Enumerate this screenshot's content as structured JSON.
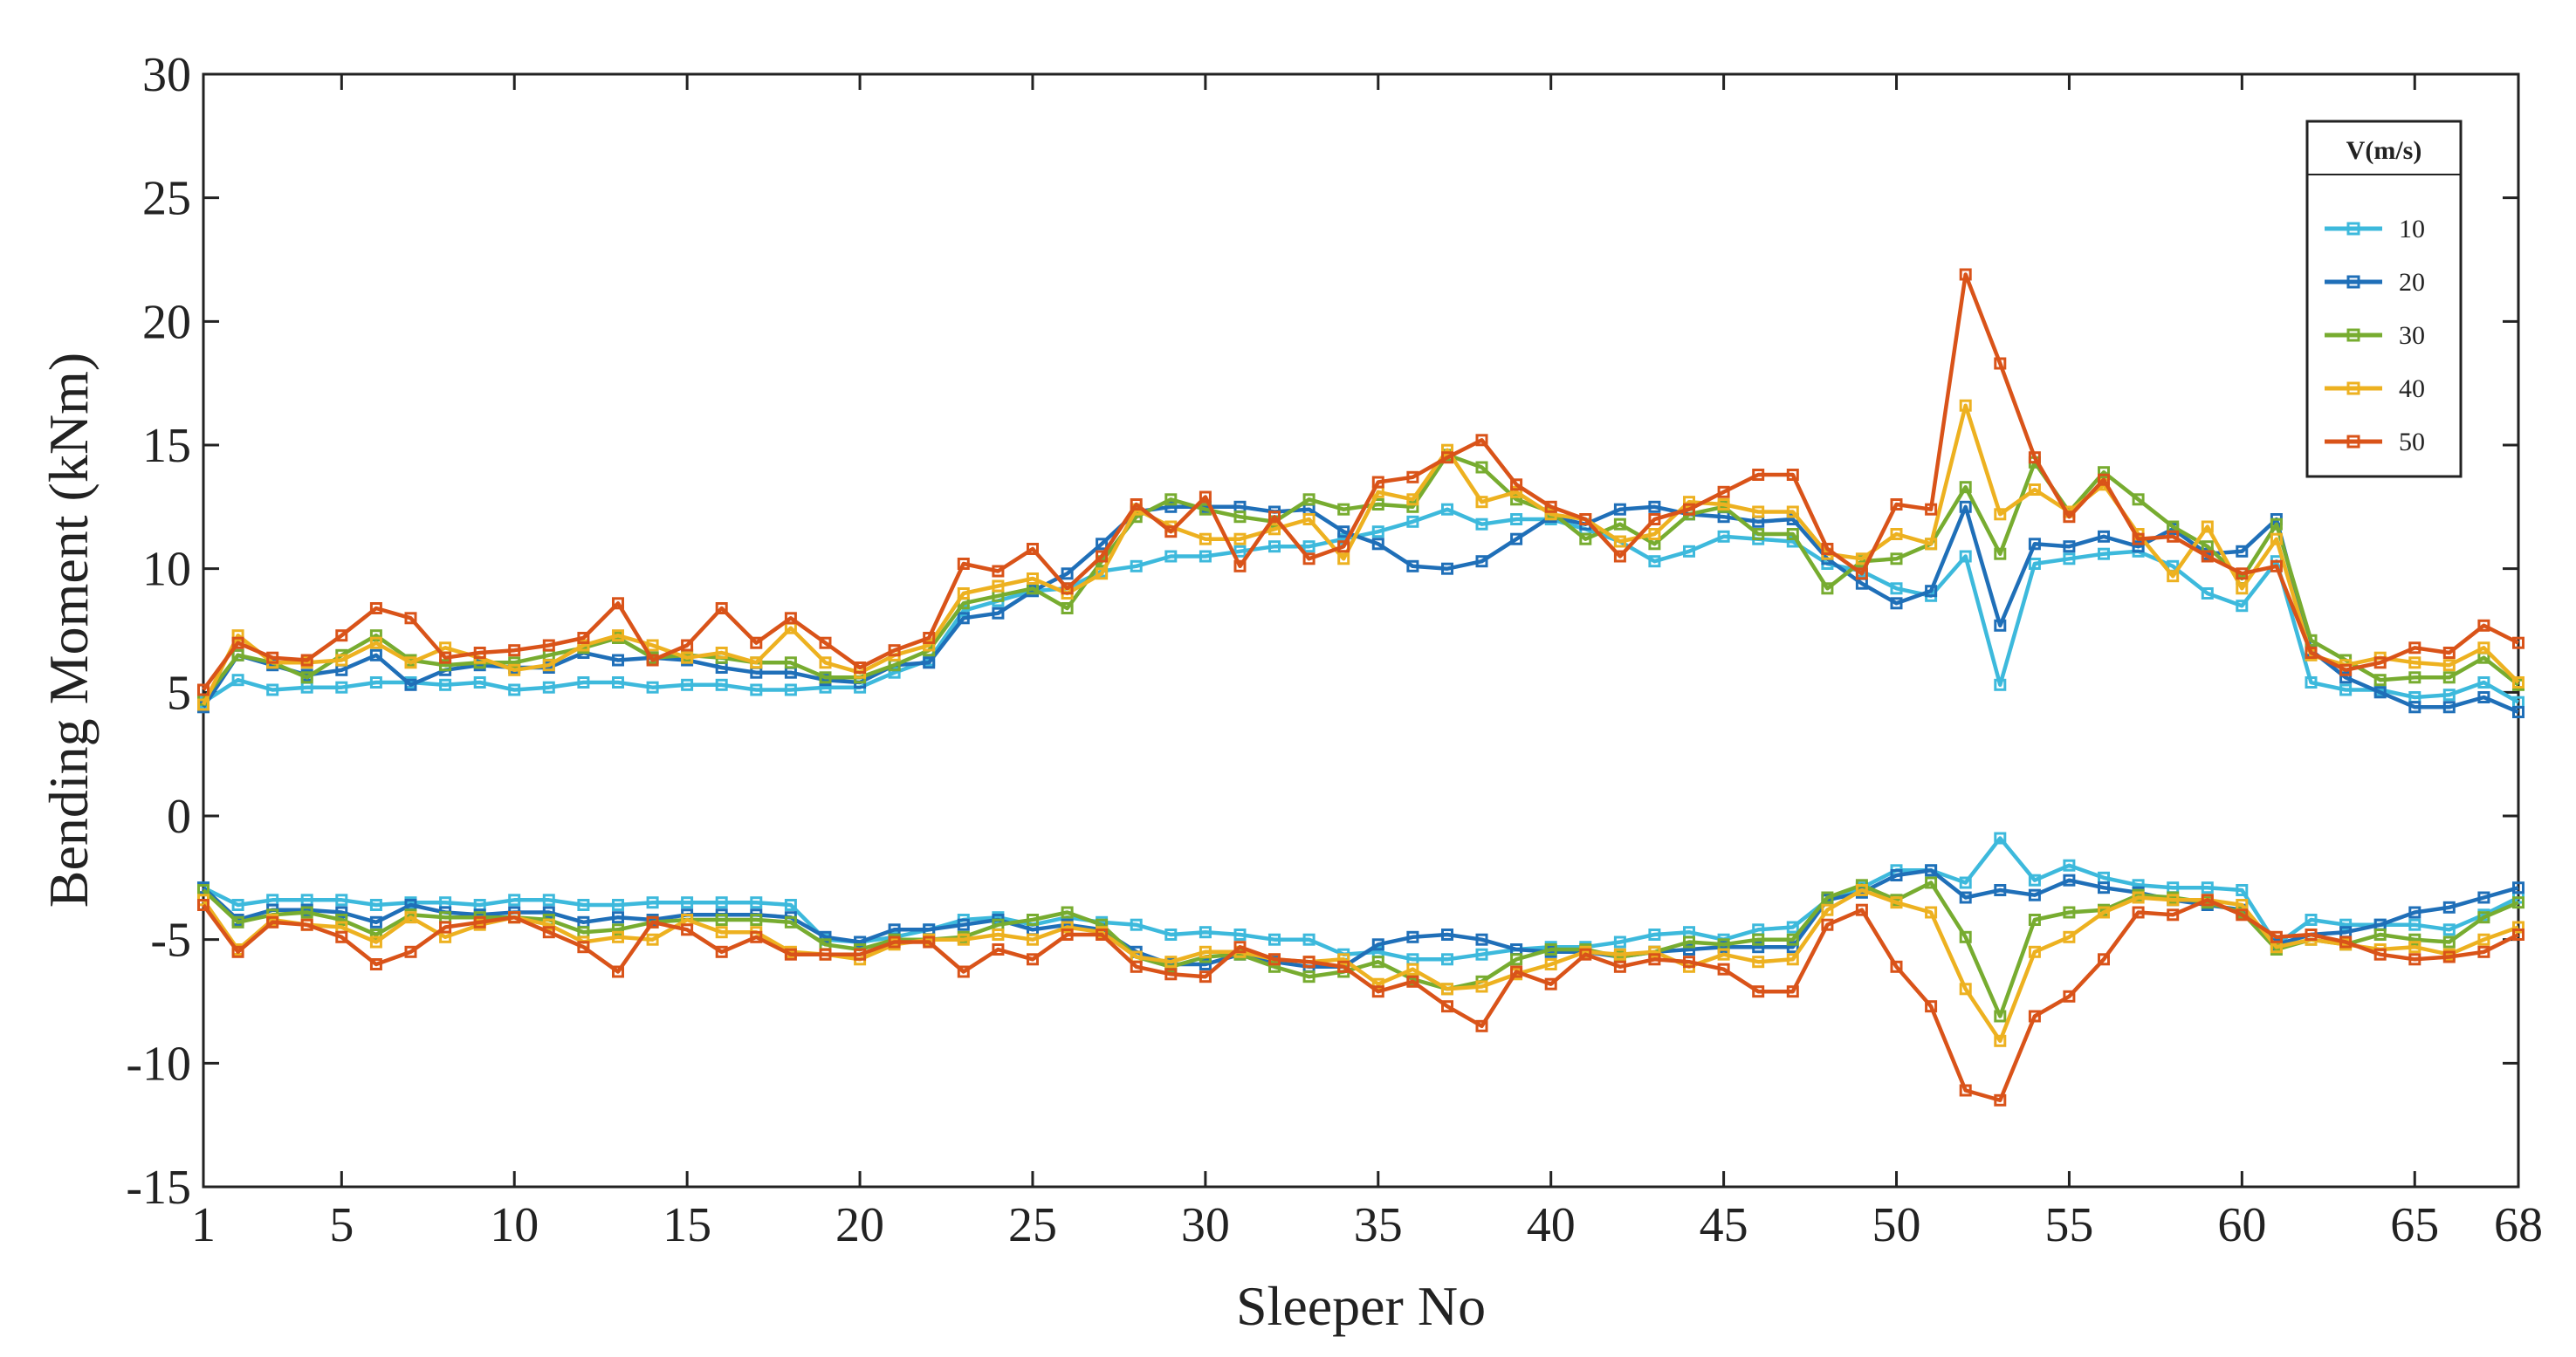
{
  "colors": {
    "axis": "#222222",
    "plot_bg": "#ffffff",
    "legend_border": "#222222"
  },
  "chart_data": {
    "type": "line",
    "title": "",
    "xlabel": "Sleeper No",
    "ylabel": "Bending Moment (kNm)",
    "xlim": [
      1,
      68
    ],
    "ylim": [
      -15,
      30
    ],
    "xticks": [
      1,
      5,
      10,
      15,
      20,
      25,
      30,
      35,
      40,
      45,
      50,
      55,
      60,
      65,
      68
    ],
    "yticks": [
      -15,
      -10,
      -5,
      0,
      5,
      10,
      15,
      20,
      25,
      30
    ],
    "grid": false,
    "marker": "square",
    "legend": {
      "title": "V(m/s)",
      "position": "top-right"
    },
    "x": [
      1,
      2,
      3,
      4,
      5,
      6,
      7,
      8,
      9,
      10,
      11,
      12,
      13,
      14,
      15,
      16,
      17,
      18,
      19,
      20,
      21,
      22,
      23,
      24,
      25,
      26,
      27,
      28,
      29,
      30,
      31,
      32,
      33,
      34,
      35,
      36,
      37,
      38,
      39,
      40,
      41,
      42,
      43,
      44,
      45,
      46,
      47,
      48,
      49,
      50,
      51,
      52,
      53,
      54,
      55,
      56,
      57,
      58,
      59,
      60,
      61,
      62,
      63,
      64,
      65,
      66,
      67,
      68
    ],
    "series": [
      {
        "name": "10",
        "color": "#3db9dc",
        "values_positive": [
          4.6,
          5.5,
          5.1,
          5.2,
          5.2,
          5.4,
          5.4,
          5.3,
          5.4,
          5.1,
          5.2,
          5.4,
          5.4,
          5.2,
          5.3,
          5.3,
          5.1,
          5.1,
          5.2,
          5.2,
          5.8,
          6.3,
          8.3,
          8.7,
          9.1,
          9.2,
          9.9,
          10.1,
          10.5,
          10.5,
          10.7,
          10.9,
          10.9,
          11.2,
          11.5,
          11.9,
          12.4,
          11.8,
          12.0,
          12.0,
          11.6,
          11.1,
          10.3,
          10.7,
          11.3,
          11.2,
          11.1,
          10.2,
          9.9,
          9.2,
          8.9,
          10.5,
          5.3,
          10.2,
          10.4,
          10.6,
          10.7,
          10.1,
          9.0,
          8.5,
          10.3,
          5.4,
          5.1,
          5.1,
          4.8,
          4.9,
          5.4,
          4.6
        ],
        "values_negative": [
          -2.9,
          -3.6,
          -3.4,
          -3.4,
          -3.4,
          -3.6,
          -3.5,
          -3.5,
          -3.6,
          -3.4,
          -3.4,
          -3.6,
          -3.6,
          -3.5,
          -3.5,
          -3.5,
          -3.5,
          -3.6,
          -5.0,
          -5.1,
          -4.9,
          -4.6,
          -4.2,
          -4.1,
          -4.4,
          -4.1,
          -4.3,
          -4.4,
          -4.8,
          -4.7,
          -4.8,
          -5.0,
          -5.0,
          -5.6,
          -5.5,
          -5.8,
          -5.8,
          -5.6,
          -5.4,
          -5.3,
          -5.3,
          -5.1,
          -4.8,
          -4.7,
          -5.0,
          -4.6,
          -4.5,
          -3.4,
          -2.9,
          -2.2,
          -2.2,
          -2.7,
          -0.9,
          -2.6,
          -2.0,
          -2.5,
          -2.8,
          -2.9,
          -2.9,
          -3.0,
          -5.2,
          -4.2,
          -4.4,
          -4.4,
          -4.4,
          -4.6,
          -4.0,
          -3.3
        ]
      },
      {
        "name": "20",
        "color": "#1f6fb8",
        "values_positive": [
          4.4,
          6.5,
          6.1,
          5.7,
          5.9,
          6.5,
          5.3,
          5.9,
          6.1,
          6.0,
          6.0,
          6.6,
          6.3,
          6.4,
          6.3,
          6.0,
          5.8,
          5.8,
          5.5,
          5.4,
          6.1,
          6.2,
          8.0,
          8.2,
          9.1,
          9.8,
          11.0,
          12.3,
          12.5,
          12.5,
          12.5,
          12.3,
          12.4,
          11.5,
          11.0,
          10.1,
          10.0,
          10.3,
          11.2,
          12.1,
          11.8,
          12.4,
          12.5,
          12.2,
          12.1,
          11.9,
          12.0,
          10.4,
          9.4,
          8.6,
          9.1,
          12.5,
          7.7,
          11.0,
          10.9,
          11.3,
          10.9,
          11.6,
          10.6,
          10.7,
          12.0,
          6.7,
          5.6,
          5.0,
          4.4,
          4.4,
          4.8,
          4.2
        ],
        "values_negative": [
          -2.9,
          -4.2,
          -3.8,
          -3.8,
          -3.9,
          -4.3,
          -3.6,
          -3.9,
          -4.0,
          -3.9,
          -3.9,
          -4.3,
          -4.1,
          -4.2,
          -4.0,
          -4.0,
          -4.0,
          -4.1,
          -4.9,
          -5.1,
          -4.6,
          -4.6,
          -4.4,
          -4.2,
          -4.6,
          -4.4,
          -4.6,
          -5.5,
          -6.0,
          -6.0,
          -5.6,
          -5.9,
          -6.1,
          -6.1,
          -5.2,
          -4.9,
          -4.8,
          -5.0,
          -5.4,
          -5.5,
          -5.5,
          -5.7,
          -5.5,
          -5.4,
          -5.3,
          -5.3,
          -5.3,
          -3.4,
          -3.1,
          -2.4,
          -2.2,
          -3.3,
          -3.0,
          -3.2,
          -2.6,
          -2.9,
          -3.1,
          -3.4,
          -3.6,
          -3.8,
          -5.2,
          -4.8,
          -4.7,
          -4.4,
          -3.9,
          -3.7,
          -3.3,
          -2.9
        ]
      },
      {
        "name": "30",
        "color": "#77ac30",
        "values_positive": [
          4.7,
          6.5,
          6.2,
          5.6,
          6.5,
          7.3,
          6.3,
          6.1,
          6.2,
          6.2,
          6.5,
          6.8,
          7.2,
          6.4,
          6.5,
          6.4,
          6.2,
          6.2,
          5.6,
          5.6,
          6.1,
          6.7,
          8.6,
          8.9,
          9.2,
          8.4,
          10.3,
          12.1,
          12.8,
          12.4,
          12.1,
          11.9,
          12.8,
          12.4,
          12.6,
          12.5,
          14.6,
          14.1,
          12.8,
          12.3,
          11.2,
          11.8,
          11.0,
          12.2,
          12.5,
          11.4,
          11.4,
          9.2,
          10.3,
          10.4,
          11.0,
          13.3,
          10.6,
          14.3,
          12.3,
          13.9,
          12.8,
          11.7,
          10.9,
          9.6,
          11.8,
          7.1,
          6.3,
          5.5,
          5.6,
          5.6,
          6.4,
          5.3
        ],
        "values_negative": [
          -3.0,
          -4.3,
          -4.0,
          -3.9,
          -4.2,
          -4.8,
          -4.0,
          -4.1,
          -4.1,
          -4.1,
          -4.2,
          -4.7,
          -4.6,
          -4.3,
          -4.2,
          -4.2,
          -4.2,
          -4.3,
          -5.2,
          -5.4,
          -5.0,
          -5.0,
          -4.9,
          -4.4,
          -4.2,
          -3.9,
          -4.4,
          -5.7,
          -6.1,
          -5.7,
          -5.6,
          -6.1,
          -6.5,
          -6.3,
          -5.9,
          -6.6,
          -7.0,
          -6.7,
          -5.8,
          -5.4,
          -5.4,
          -5.7,
          -5.5,
          -5.1,
          -5.2,
          -5.0,
          -5.0,
          -3.3,
          -2.8,
          -3.4,
          -2.7,
          -4.9,
          -8.1,
          -4.2,
          -3.9,
          -3.8,
          -3.2,
          -3.3,
          -3.5,
          -3.9,
          -5.4,
          -5.0,
          -5.2,
          -4.8,
          -5.0,
          -5.1,
          -4.1,
          -3.5
        ]
      },
      {
        "name": "40",
        "color": "#edb120",
        "values_positive": [
          4.5,
          7.3,
          6.2,
          6.2,
          6.3,
          7.0,
          6.2,
          6.8,
          6.4,
          5.9,
          6.1,
          6.9,
          7.3,
          6.9,
          6.4,
          6.6,
          6.2,
          7.6,
          6.2,
          5.8,
          6.5,
          6.9,
          9.0,
          9.3,
          9.6,
          9.0,
          9.8,
          12.4,
          11.7,
          11.2,
          11.2,
          11.6,
          12.0,
          10.4,
          13.1,
          12.8,
          14.8,
          12.7,
          13.1,
          12.2,
          12.0,
          11.1,
          11.4,
          12.7,
          12.6,
          12.3,
          12.3,
          10.6,
          10.4,
          11.4,
          11.0,
          16.6,
          12.2,
          13.2,
          12.3,
          13.4,
          11.4,
          9.7,
          11.7,
          9.2,
          11.2,
          6.5,
          6.1,
          6.4,
          6.2,
          6.1,
          6.8,
          5.4
        ],
        "values_negative": [
          -3.4,
          -5.4,
          -4.2,
          -4.4,
          -4.5,
          -5.1,
          -4.1,
          -4.9,
          -4.4,
          -4.1,
          -4.4,
          -5.1,
          -4.9,
          -5.0,
          -4.2,
          -4.7,
          -4.7,
          -5.5,
          -5.6,
          -5.8,
          -5.2,
          -5.0,
          -5.0,
          -4.8,
          -5.0,
          -4.5,
          -4.7,
          -5.7,
          -5.9,
          -5.5,
          -5.5,
          -5.8,
          -5.9,
          -5.8,
          -6.8,
          -6.2,
          -7.0,
          -6.9,
          -6.4,
          -6.0,
          -5.5,
          -5.6,
          -5.5,
          -6.1,
          -5.6,
          -5.9,
          -5.8,
          -3.8,
          -3.0,
          -3.5,
          -3.9,
          -7.0,
          -9.1,
          -5.5,
          -4.9,
          -3.9,
          -3.3,
          -3.4,
          -3.4,
          -3.6,
          -5.3,
          -5.0,
          -5.2,
          -5.4,
          -5.3,
          -5.6,
          -5.0,
          -4.5
        ]
      },
      {
        "name": "50",
        "color": "#d95319",
        "values_positive": [
          5.1,
          7.0,
          6.4,
          6.3,
          7.3,
          8.4,
          8.0,
          6.4,
          6.6,
          6.7,
          6.9,
          7.2,
          8.6,
          6.3,
          6.9,
          8.4,
          7.0,
          8.0,
          7.0,
          6.0,
          6.7,
          7.2,
          10.2,
          9.9,
          10.8,
          9.2,
          10.5,
          12.6,
          11.5,
          12.9,
          10.1,
          12.1,
          10.4,
          10.9,
          13.5,
          13.7,
          14.5,
          15.2,
          13.4,
          12.5,
          12.0,
          10.5,
          12.0,
          12.4,
          13.1,
          13.8,
          13.8,
          10.8,
          9.8,
          12.6,
          12.4,
          21.9,
          18.3,
          14.5,
          12.1,
          13.6,
          11.2,
          11.3,
          10.5,
          9.8,
          10.1,
          6.6,
          5.9,
          6.2,
          6.8,
          6.6,
          7.7,
          7.0
        ],
        "values_negative": [
          -3.6,
          -5.5,
          -4.3,
          -4.4,
          -4.9,
          -6.0,
          -5.5,
          -4.5,
          -4.3,
          -4.1,
          -4.7,
          -5.3,
          -6.3,
          -4.3,
          -4.6,
          -5.5,
          -4.9,
          -5.6,
          -5.6,
          -5.6,
          -5.1,
          -5.1,
          -6.3,
          -5.4,
          -5.8,
          -4.8,
          -4.8,
          -6.1,
          -6.4,
          -6.5,
          -5.3,
          -5.8,
          -5.9,
          -6.1,
          -7.1,
          -6.7,
          -7.7,
          -8.5,
          -6.3,
          -6.8,
          -5.6,
          -6.1,
          -5.8,
          -5.9,
          -6.2,
          -7.1,
          -7.1,
          -4.4,
          -3.8,
          -6.1,
          -7.7,
          -11.1,
          -11.5,
          -8.1,
          -7.3,
          -5.8,
          -3.9,
          -4.0,
          -3.4,
          -4.0,
          -4.9,
          -4.8,
          -5.1,
          -5.6,
          -5.8,
          -5.7,
          -5.5,
          -4.8
        ]
      }
    ]
  }
}
